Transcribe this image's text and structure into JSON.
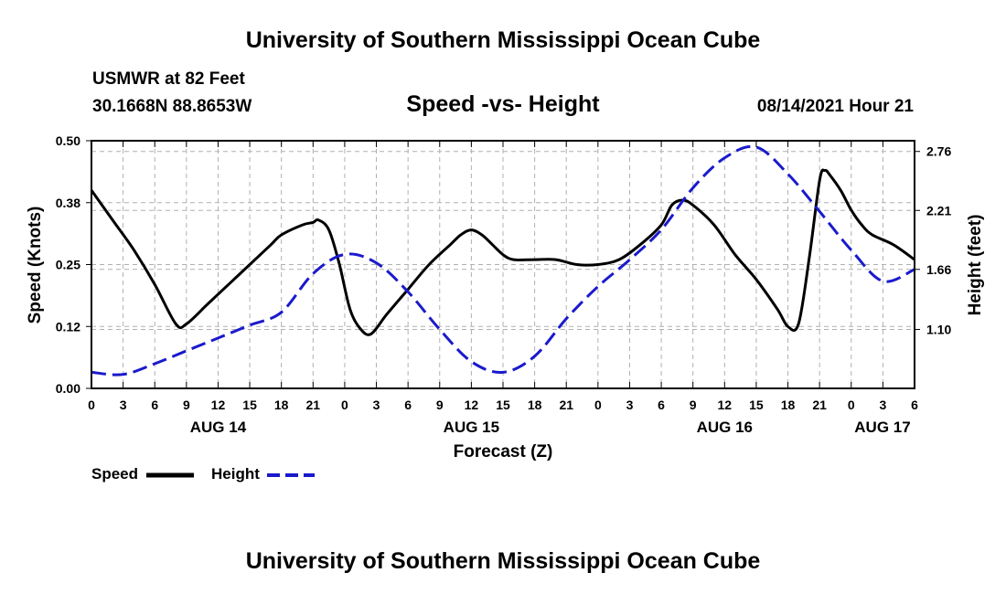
{
  "header": {
    "title": "University of Southern Mississippi Ocean Cube",
    "station": "USMWR at 82 Feet",
    "coords": "30.1668N  88.8653W",
    "chart_title": "Speed -vs- Height",
    "date": "08/14/2021 Hour 21"
  },
  "footer": {
    "title": "University of Southern Mississippi Ocean Cube"
  },
  "legend": {
    "speed_label": "Speed",
    "height_label": "Height"
  },
  "colors": {
    "speed": "#000000",
    "height": "#1a1acc",
    "grid": "#b0b0b0"
  },
  "chart_data": {
    "type": "line",
    "title": "Speed -vs- Height",
    "xlabel": "Forecast (Z)",
    "ylabel": "Speed (Knots)",
    "y2label": "Height (feet)",
    "x_unit": "hours since AUG 14 00Z",
    "xlim": [
      0,
      78
    ],
    "ylim": [
      0,
      0.5
    ],
    "y2lim": [
      0.55,
      2.86
    ],
    "grid": true,
    "x_ticks": [
      {
        "x": 0,
        "label": "0"
      },
      {
        "x": 3,
        "label": "3"
      },
      {
        "x": 6,
        "label": "6"
      },
      {
        "x": 9,
        "label": "9"
      },
      {
        "x": 12,
        "label": "12"
      },
      {
        "x": 15,
        "label": "15"
      },
      {
        "x": 18,
        "label": "18"
      },
      {
        "x": 21,
        "label": "21"
      },
      {
        "x": 24,
        "label": "0"
      },
      {
        "x": 27,
        "label": "3"
      },
      {
        "x": 30,
        "label": "6"
      },
      {
        "x": 33,
        "label": "9"
      },
      {
        "x": 36,
        "label": "12"
      },
      {
        "x": 39,
        "label": "15"
      },
      {
        "x": 42,
        "label": "18"
      },
      {
        "x": 45,
        "label": "21"
      },
      {
        "x": 48,
        "label": "0"
      },
      {
        "x": 51,
        "label": "3"
      },
      {
        "x": 54,
        "label": "6"
      },
      {
        "x": 57,
        "label": "9"
      },
      {
        "x": 60,
        "label": "12"
      },
      {
        "x": 63,
        "label": "15"
      },
      {
        "x": 66,
        "label": "18"
      },
      {
        "x": 69,
        "label": "21"
      },
      {
        "x": 72,
        "label": "0"
      },
      {
        "x": 75,
        "label": "3"
      },
      {
        "x": 78,
        "label": "6"
      }
    ],
    "date_labels": [
      {
        "x": 12,
        "label": "AUG 14"
      },
      {
        "x": 36,
        "label": "AUG 15"
      },
      {
        "x": 60,
        "label": "AUG 16"
      },
      {
        "x": 78,
        "label": "AUG 17"
      }
    ],
    "y_ticks": [
      {
        "value": 0.0,
        "label": "0.00"
      },
      {
        "value": 0.125,
        "label": "0.12"
      },
      {
        "value": 0.25,
        "label": "0.25"
      },
      {
        "value": 0.375,
        "label": "0.38"
      },
      {
        "value": 0.5,
        "label": "0.50"
      }
    ],
    "y2_ticks": [
      {
        "value": 1.1,
        "label": "1.10"
      },
      {
        "value": 1.66,
        "label": "1.66"
      },
      {
        "value": 2.21,
        "label": "2.21"
      },
      {
        "value": 2.76,
        "label": "2.76"
      }
    ],
    "series": [
      {
        "name": "Speed",
        "axis": "left",
        "style": "solid",
        "x": [
          0,
          2,
          4,
          6,
          8,
          9,
          11,
          13,
          15,
          17,
          18,
          20,
          21,
          21.5,
          22.5,
          23.5,
          24.5,
          25.5,
          26.5,
          28,
          30,
          32,
          34,
          35,
          36,
          37,
          38,
          39,
          40,
          42,
          44,
          46,
          48,
          50,
          52,
          54,
          55,
          56,
          57,
          59,
          61,
          63,
          65,
          66,
          67,
          68,
          69,
          69.5,
          70,
          71,
          72,
          73,
          74,
          76,
          78
        ],
        "values": [
          0.4,
          0.34,
          0.28,
          0.21,
          0.13,
          0.13,
          0.17,
          0.21,
          0.25,
          0.29,
          0.31,
          0.33,
          0.335,
          0.34,
          0.32,
          0.25,
          0.16,
          0.12,
          0.11,
          0.15,
          0.2,
          0.25,
          0.29,
          0.31,
          0.32,
          0.31,
          0.29,
          0.27,
          0.26,
          0.26,
          0.26,
          0.25,
          0.25,
          0.26,
          0.29,
          0.33,
          0.37,
          0.38,
          0.37,
          0.33,
          0.27,
          0.22,
          0.16,
          0.125,
          0.13,
          0.26,
          0.42,
          0.44,
          0.43,
          0.4,
          0.36,
          0.33,
          0.31,
          0.29,
          0.26
        ]
      },
      {
        "name": "Height",
        "axis": "right",
        "style": "dashed",
        "x": [
          0,
          3,
          6,
          9,
          12,
          15,
          18,
          21,
          24,
          27,
          30,
          33,
          36,
          39,
          42,
          45,
          48,
          51,
          54,
          57,
          60,
          63,
          66,
          69,
          72,
          75,
          78
        ],
        "values": [
          0.7,
          0.68,
          0.78,
          0.9,
          1.02,
          1.14,
          1.26,
          1.62,
          1.8,
          1.72,
          1.45,
          1.1,
          0.8,
          0.7,
          0.85,
          1.2,
          1.5,
          1.75,
          2.03,
          2.42,
          2.7,
          2.8,
          2.55,
          2.2,
          1.84,
          1.55,
          1.66
        ]
      }
    ]
  }
}
